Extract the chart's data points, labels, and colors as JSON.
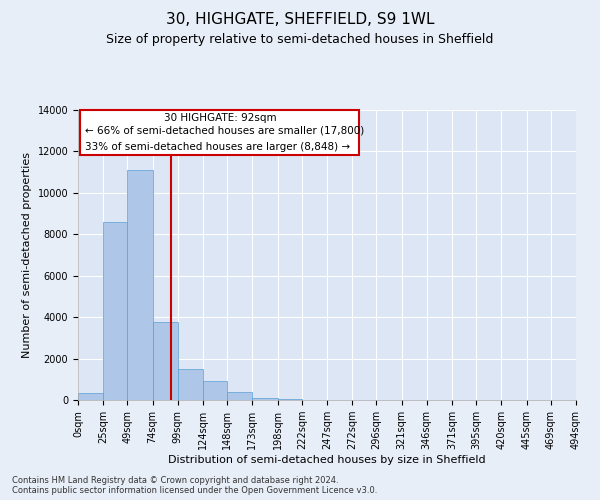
{
  "title": "30, HIGHGATE, SHEFFIELD, S9 1WL",
  "subtitle": "Size of property relative to semi-detached houses in Sheffield",
  "xlabel": "Distribution of semi-detached houses by size in Sheffield",
  "ylabel": "Number of semi-detached properties",
  "property_label": "30 HIGHGATE: 92sqm",
  "smaller_pct": 66,
  "smaller_n": "17,800",
  "larger_pct": 33,
  "larger_n": "8,848",
  "property_size_sqm": 92,
  "bin_edges": [
    0,
    25,
    49,
    74,
    99,
    124,
    148,
    173,
    198,
    222,
    247,
    272,
    296,
    321,
    346,
    371,
    395,
    420,
    445,
    469,
    494
  ],
  "bin_labels": [
    "0sqm",
    "25sqm",
    "49sqm",
    "74sqm",
    "99sqm",
    "124sqm",
    "148sqm",
    "173sqm",
    "198sqm",
    "222sqm",
    "247sqm",
    "272sqm",
    "296sqm",
    "321sqm",
    "346sqm",
    "371sqm",
    "395sqm",
    "420sqm",
    "445sqm",
    "469sqm",
    "494sqm"
  ],
  "bar_heights": [
    350,
    8600,
    11100,
    3750,
    1500,
    900,
    400,
    100,
    60,
    0,
    0,
    0,
    0,
    0,
    0,
    0,
    0,
    0,
    0,
    0
  ],
  "bar_color": "#aec6e8",
  "bar_edge_color": "#5a9fd4",
  "vline_color": "#cc0000",
  "vline_x": 92,
  "ylim": [
    0,
    14000
  ],
  "yticks": [
    0,
    2000,
    4000,
    6000,
    8000,
    10000,
    12000,
    14000
  ],
  "bg_color": "#e8eef8",
  "axes_bg_color": "#dce6f5",
  "grid_color": "#ffffff",
  "annotation_box_color": "#ffffff",
  "annotation_border_color": "#cc0000",
  "footer_text": "Contains HM Land Registry data © Crown copyright and database right 2024.\nContains public sector information licensed under the Open Government Licence v3.0.",
  "title_fontsize": 11,
  "subtitle_fontsize": 9,
  "label_fontsize": 8,
  "tick_fontsize": 7
}
